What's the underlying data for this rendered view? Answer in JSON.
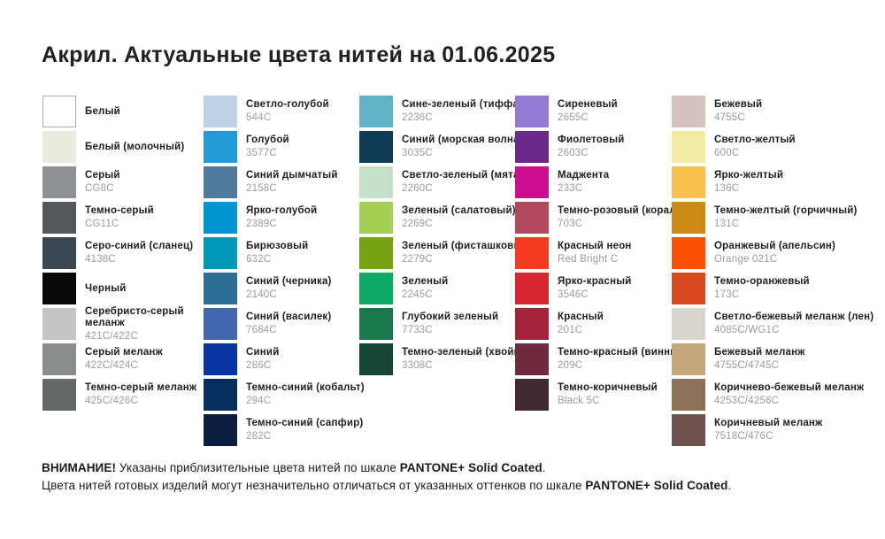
{
  "title": "Акрил. Актуальные цвета нитей на 01.06.2025",
  "columns": [
    {
      "group": "whites-grays-black",
      "swatches": [
        {
          "name": "Белый",
          "code": "",
          "color": "#ffffff",
          "bordered": true
        },
        {
          "name": "Белый (молочный)",
          "code": "",
          "color": "#e9ebdc"
        },
        {
          "name": "Серый",
          "code": "CG8C",
          "color": "#8e9194"
        },
        {
          "name": "Темно-серый",
          "code": "CG11C",
          "color": "#54585c"
        },
        {
          "name": "Серо-синий (сланец)",
          "code": "4138C",
          "color": "#394753"
        },
        {
          "name": "Черный",
          "code": "",
          "color": "#0a0a0c"
        },
        {
          "name": "Серебристо-серый меланж",
          "code": "421C/422C",
          "color": "#c4c6c5"
        },
        {
          "name": "Серый меланж",
          "code": "422C/424C",
          "color": "#8a8d8d"
        },
        {
          "name": "Темно-серый меланж",
          "code": "425C/426C",
          "color": "#646869"
        }
      ]
    },
    {
      "group": "blues",
      "swatches": [
        {
          "name": "Светло-голубой",
          "code": "544C",
          "color": "#bdd3e5"
        },
        {
          "name": "Голубой",
          "code": "3577C",
          "color": "#219ad5"
        },
        {
          "name": "Синий дымчатый",
          "code": "2158C",
          "color": "#4f7a9b"
        },
        {
          "name": "Ярко-голубой",
          "code": "2389C",
          "color": "#0095d0"
        },
        {
          "name": "Бирюзовый",
          "code": "632C",
          "color": "#0098b9"
        },
        {
          "name": "Синий (черника)",
          "code": "2140C",
          "color": "#2c7096"
        },
        {
          "name": "Синий (василек)",
          "code": "7684C",
          "color": "#4166ae"
        },
        {
          "name": "Синий",
          "code": "286C",
          "color": "#0634a3"
        },
        {
          "name": "Темно-синий (кобальт)",
          "code": "294C",
          "color": "#03305f"
        },
        {
          "name": "Темно-синий (сапфир)",
          "code": "282C",
          "color": "#0d1f41"
        }
      ]
    },
    {
      "group": "greens",
      "swatches": [
        {
          "name": "Сине-зеленый (тиффани)",
          "code": "2236C",
          "color": "#60b3c4"
        },
        {
          "name": "Синий (морская волна)",
          "code": "3035C",
          "color": "#0e3e54"
        },
        {
          "name": "Светло-зеленый (мята)",
          "code": "2260C",
          "color": "#c4e0c7"
        },
        {
          "name": "Зеленый (салатовый)",
          "code": "2269C",
          "color": "#a3cf52"
        },
        {
          "name": "Зеленый (фисташковый)",
          "code": "2279C",
          "color": "#76a312"
        },
        {
          "name": "Зеленый",
          "code": "2245C",
          "color": "#0daa65"
        },
        {
          "name": "Глубокий зеленый",
          "code": "7733C",
          "color": "#1a794b"
        },
        {
          "name": "Темно-зеленый (хвойный)",
          "code": "3308C",
          "color": "#164734"
        }
      ]
    },
    {
      "group": "purples-reds",
      "swatches": [
        {
          "name": "Сиреневый",
          "code": "2655C",
          "color": "#9379d2"
        },
        {
          "name": "Фиолетовый",
          "code": "2603C",
          "color": "#6a2a89"
        },
        {
          "name": "Маджента",
          "code": "233C",
          "color": "#cc0d8e"
        },
        {
          "name": "Темно-розовый (коралл)",
          "code": "703C",
          "color": "#b1495c"
        },
        {
          "name": "Красный неон",
          "code": "Red Bright C",
          "color": "#f43b1e"
        },
        {
          "name": "Ярко-красный",
          "code": "3546C",
          "color": "#d62730"
        },
        {
          "name": "Красный",
          "code": "201C",
          "color": "#a2233a"
        },
        {
          "name": "Темно-красный (винный)",
          "code": "209C",
          "color": "#6f2b3e"
        },
        {
          "name": "Темно-коричневый",
          "code": "Black 5C",
          "color": "#3e2a32"
        }
      ]
    },
    {
      "group": "yellows-browns",
      "swatches": [
        {
          "name": "Бежевый",
          "code": "4755C",
          "color": "#d4c3bd"
        },
        {
          "name": "Светло-желтый",
          "code": "600C",
          "color": "#f0eca2"
        },
        {
          "name": "Ярко-желтый",
          "code": "136C",
          "color": "#fbc14d"
        },
        {
          "name": "Темно-желтый (горчичный)",
          "code": "131C",
          "color": "#ca8a13"
        },
        {
          "name": "Оранжевый (апельсин)",
          "code": "Orange 021C",
          "color": "#fc4f00"
        },
        {
          "name": "Темно-оранжевый",
          "code": "173C",
          "color": "#d84a20"
        },
        {
          "name": "Светло-бежевый меланж (лен)",
          "code": "4085C/WG1C",
          "color": "#d8d5cc"
        },
        {
          "name": "Бежевый меланж",
          "code": "4755C/4745C",
          "color": "#c2a878"
        },
        {
          "name": "Коричнево-бежевый меланж",
          "code": "4253C/4256C",
          "color": "#8a7158"
        },
        {
          "name": "Коричневый меланж",
          "code": "7518C/476C",
          "color": "#6f544d"
        }
      ]
    }
  ],
  "footer": {
    "line1_bold_lead": "ВНИМАНИЕ!",
    "line1_text": " Указаны приблизительные цвета нитей по шкале ",
    "line1_bold_scale": "PANTONE+ Solid Coated",
    "line1_period": ".",
    "line2_text": "Цвета нитей готовых изделий могут незначительно отличаться от указанных оттенков по шкале ",
    "line2_bold_scale": "PANTONE+ Solid Coated",
    "line2_period": "."
  }
}
